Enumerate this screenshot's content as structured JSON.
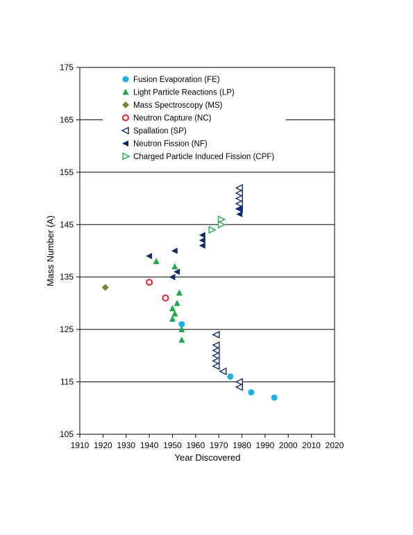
{
  "chart_data": {
    "type": "scatter",
    "xlabel": "Year Discovered",
    "ylabel": "Mass Number (A)",
    "xlim": [
      1910,
      2020
    ],
    "ylim": [
      105,
      175
    ],
    "xticks": [
      1910,
      1920,
      1930,
      1940,
      1950,
      1960,
      1970,
      1980,
      1990,
      2000,
      2010,
      2020
    ],
    "yticks": [
      105,
      115,
      125,
      135,
      145,
      155,
      165,
      175
    ],
    "grid": "horizontal",
    "legend_position": "top-left",
    "series": [
      {
        "name": "Fusion Evaporation (FE)",
        "marker": "circle-filled",
        "color": "#1ab0e8",
        "points": [
          [
            1954,
            126
          ],
          [
            1975,
            116
          ],
          [
            1984,
            113
          ],
          [
            1994,
            112
          ]
        ]
      },
      {
        "name": "Light Particle Reactions (LP)",
        "marker": "triangle-up-filled",
        "color": "#1ea84a",
        "points": [
          [
            1943,
            138
          ],
          [
            1951,
            137
          ],
          [
            1953,
            132
          ],
          [
            1952,
            130
          ],
          [
            1950,
            129
          ],
          [
            1951,
            128
          ],
          [
            1950,
            127
          ],
          [
            1954,
            125
          ],
          [
            1954,
            123
          ]
        ]
      },
      {
        "name": "Mass Spectroscopy (MS)",
        "marker": "diamond-filled",
        "color": "#6e8b3d",
        "points": [
          [
            1921,
            133
          ]
        ]
      },
      {
        "name": "Neutron Capture (NC)",
        "marker": "circle-open",
        "color": "#e8202a",
        "points": [
          [
            1940,
            134
          ],
          [
            1947,
            131
          ]
        ]
      },
      {
        "name": "Spallation (SP)",
        "marker": "triangle-left-open",
        "color": "#0c2a6e",
        "points": [
          [
            1969,
            124
          ],
          [
            1969,
            122
          ],
          [
            1969,
            121
          ],
          [
            1969,
            120
          ],
          [
            1969,
            119
          ],
          [
            1969,
            118
          ],
          [
            1972,
            117
          ],
          [
            1979,
            115
          ],
          [
            1979,
            114
          ],
          [
            1979,
            152
          ],
          [
            1979,
            151
          ],
          [
            1979,
            150
          ],
          [
            1979,
            149
          ],
          [
            1979,
            148
          ]
        ]
      },
      {
        "name": "Neutron Fission (NF)",
        "marker": "triangle-left-filled",
        "color": "#0c2a6e",
        "points": [
          [
            1940,
            139
          ],
          [
            1951,
            140
          ],
          [
            1952,
            136
          ],
          [
            1950,
            135
          ],
          [
            1963,
            143
          ],
          [
            1963,
            142
          ],
          [
            1963,
            141
          ],
          [
            1979,
            148
          ],
          [
            1979,
            147
          ]
        ]
      },
      {
        "name": "Charged Particle Induced Fission (CPF)",
        "marker": "triangle-right-open",
        "color": "#1ea84a",
        "points": [
          [
            1967,
            144
          ],
          [
            1971,
            146
          ],
          [
            1971,
            145
          ]
        ]
      }
    ]
  }
}
